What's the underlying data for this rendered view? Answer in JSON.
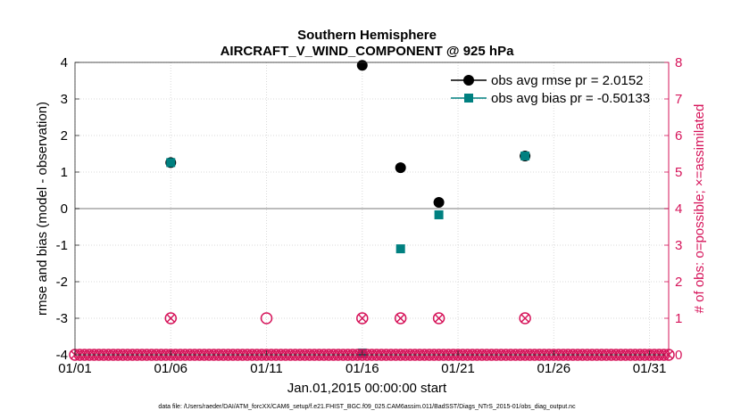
{
  "chart_data": {
    "type": "scatter",
    "title": "Southern Hemisphere",
    "subtitle": "AIRCRAFT_V_WIND_COMPONENT @ 925 hPa",
    "xlabel": "Jan.01,2015 00:00:00 start",
    "ylabel_left": "rmse and bias (model - observation)",
    "ylabel_right": "# of obs: o=possible; ×=assimilated",
    "footer": "data file: /Users/raeder/DAI/ATM_forcXX/CAM6_setup/f.e21.FHIST_BGC.f09_025.CAM6assim.011/BadSST/Diags_NTrS_2015-01/obs_diag_output.nc",
    "xlim": [
      1,
      32
    ],
    "ylim_left": [
      -4,
      4
    ],
    "ylim_right": [
      0,
      8
    ],
    "x_ticks": [
      1,
      6,
      11,
      16,
      21,
      26,
      31
    ],
    "x_tick_labels": [
      "01/01",
      "01/06",
      "01/11",
      "01/16",
      "01/21",
      "01/26",
      "01/31"
    ],
    "y_ticks_left": [
      -4,
      -3,
      -2,
      -1,
      0,
      1,
      2,
      3,
      4
    ],
    "y_ticks_right": [
      0,
      1,
      2,
      3,
      4,
      5,
      6,
      7,
      8
    ],
    "legend_position": "top-right",
    "series": [
      {
        "name": "obs avg rmse pr = 2.0152",
        "axis": "left",
        "color": "#000000",
        "marker": "circle",
        "x": [
          6,
          16,
          18,
          20,
          24.5
        ],
        "y": [
          1.26,
          3.92,
          1.12,
          0.17,
          1.44
        ]
      },
      {
        "name": "obs avg bias pr = -0.50133",
        "axis": "left",
        "color": "#008080",
        "marker": "square",
        "x": [
          6,
          16,
          18,
          20,
          24.5
        ],
        "y": [
          1.26,
          -3.95,
          -1.1,
          -0.17,
          1.44
        ]
      },
      {
        "name": "obs possible",
        "axis": "right",
        "color": "#d6145a",
        "marker": "circle-open",
        "x": [
          1,
          1.25,
          1.5,
          1.75,
          2,
          2.25,
          2.5,
          2.75,
          3,
          3.25,
          3.5,
          3.75,
          4,
          4.25,
          4.5,
          4.75,
          5,
          5.25,
          5.5,
          5.75,
          6,
          6.25,
          6.5,
          6.75,
          7,
          7.25,
          7.5,
          7.75,
          8,
          8.25,
          8.5,
          8.75,
          9,
          9.25,
          9.5,
          9.75,
          10,
          10.25,
          10.5,
          10.75,
          11,
          11.25,
          11.5,
          11.75,
          12,
          12.25,
          12.5,
          12.75,
          13,
          13.25,
          13.5,
          13.75,
          14,
          14.25,
          14.5,
          14.75,
          15,
          15.25,
          15.5,
          15.75,
          16,
          16.25,
          16.5,
          16.75,
          17,
          17.25,
          17.5,
          17.75,
          18,
          18.25,
          18.5,
          18.75,
          19,
          19.25,
          19.5,
          19.75,
          20,
          20.25,
          20.5,
          20.75,
          21,
          21.25,
          21.5,
          21.75,
          22,
          22.25,
          22.5,
          22.75,
          23,
          23.25,
          23.5,
          23.75,
          24,
          24.25,
          24.5,
          24.75,
          25,
          25.25,
          25.5,
          25.75,
          26,
          26.25,
          26.5,
          26.75,
          27,
          27.25,
          27.5,
          27.75,
          28,
          28.25,
          28.5,
          28.75,
          29,
          29.25,
          29.5,
          29.75,
          30,
          30.25,
          30.5,
          30.75,
          31,
          31.25,
          31.5,
          31.75,
          32,
          6,
          11,
          16,
          18,
          20,
          24.5
        ],
        "y": [
          0,
          0,
          0,
          0,
          0,
          0,
          0,
          0,
          0,
          0,
          0,
          0,
          0,
          0,
          0,
          0,
          0,
          0,
          0,
          0,
          0,
          0,
          0,
          0,
          0,
          0,
          0,
          0,
          0,
          0,
          0,
          0,
          0,
          0,
          0,
          0,
          0,
          0,
          0,
          0,
          0,
          0,
          0,
          0,
          0,
          0,
          0,
          0,
          0,
          0,
          0,
          0,
          0,
          0,
          0,
          0,
          0,
          0,
          0,
          0,
          0,
          0,
          0,
          0,
          0,
          0,
          0,
          0,
          0,
          0,
          0,
          0,
          0,
          0,
          0,
          0,
          0,
          0,
          0,
          0,
          0,
          0,
          0,
          0,
          0,
          0,
          0,
          0,
          0,
          0,
          0,
          0,
          0,
          0,
          0,
          0,
          0,
          0,
          0,
          0,
          0,
          0,
          0,
          0,
          0,
          0,
          0,
          0,
          0,
          0,
          0,
          0,
          0,
          0,
          0,
          0,
          0,
          0,
          0,
          0,
          0,
          0,
          0,
          0,
          0,
          1,
          1,
          1,
          1,
          1,
          1
        ]
      },
      {
        "name": "obs assimilated",
        "axis": "right",
        "color": "#d6145a",
        "marker": "x",
        "x": [
          1,
          1.25,
          1.5,
          1.75,
          2,
          2.25,
          2.5,
          2.75,
          3,
          3.25,
          3.5,
          3.75,
          4,
          4.25,
          4.5,
          4.75,
          5,
          5.25,
          5.5,
          5.75,
          6,
          6.25,
          6.5,
          6.75,
          7,
          7.25,
          7.5,
          7.75,
          8,
          8.25,
          8.5,
          8.75,
          9,
          9.25,
          9.5,
          9.75,
          10,
          10.25,
          10.5,
          10.75,
          11,
          11.25,
          11.5,
          11.75,
          12,
          12.25,
          12.5,
          12.75,
          13,
          13.25,
          13.5,
          13.75,
          14,
          14.25,
          14.5,
          14.75,
          15,
          15.25,
          15.5,
          15.75,
          16,
          16.25,
          16.5,
          16.75,
          17,
          17.25,
          17.5,
          17.75,
          18,
          18.25,
          18.5,
          18.75,
          19,
          19.25,
          19.5,
          19.75,
          20,
          20.25,
          20.5,
          20.75,
          21,
          21.25,
          21.5,
          21.75,
          22,
          22.25,
          22.5,
          22.75,
          23,
          23.25,
          23.5,
          23.75,
          24,
          24.25,
          24.5,
          24.75,
          25,
          25.25,
          25.5,
          25.75,
          26,
          26.25,
          26.5,
          26.75,
          27,
          27.25,
          27.5,
          27.75,
          28,
          28.25,
          28.5,
          28.75,
          29,
          29.25,
          29.5,
          29.75,
          30,
          30.25,
          30.5,
          30.75,
          31,
          31.25,
          31.5,
          31.75,
          32,
          6,
          16,
          18,
          20,
          24.5
        ],
        "y": [
          0,
          0,
          0,
          0,
          0,
          0,
          0,
          0,
          0,
          0,
          0,
          0,
          0,
          0,
          0,
          0,
          0,
          0,
          0,
          0,
          0,
          0,
          0,
          0,
          0,
          0,
          0,
          0,
          0,
          0,
          0,
          0,
          0,
          0,
          0,
          0,
          0,
          0,
          0,
          0,
          0,
          0,
          0,
          0,
          0,
          0,
          0,
          0,
          0,
          0,
          0,
          0,
          0,
          0,
          0,
          0,
          0,
          0,
          0,
          0,
          0,
          0,
          0,
          0,
          0,
          0,
          0,
          0,
          0,
          0,
          0,
          0,
          0,
          0,
          0,
          0,
          0,
          0,
          0,
          0,
          0,
          0,
          0,
          0,
          0,
          0,
          0,
          0,
          0,
          0,
          0,
          0,
          0,
          0,
          0,
          0,
          0,
          0,
          0,
          0,
          0,
          0,
          0,
          0,
          0,
          0,
          0,
          0,
          0,
          0,
          0,
          0,
          0,
          0,
          0,
          0,
          0,
          0,
          0,
          0,
          0,
          0,
          0,
          0,
          0,
          1,
          1,
          1,
          1,
          1
        ]
      }
    ],
    "zero_line": 0
  }
}
